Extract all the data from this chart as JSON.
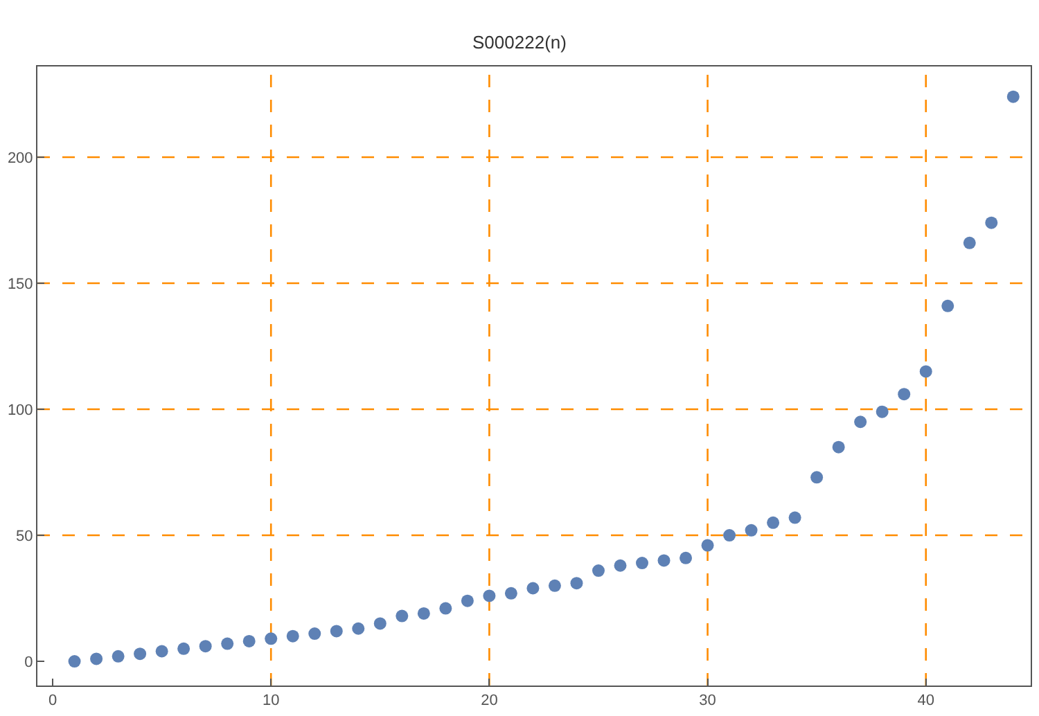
{
  "chart_data": {
    "type": "scatter",
    "title": "S000222(n)",
    "x": [
      1,
      2,
      3,
      4,
      5,
      6,
      7,
      8,
      9,
      10,
      11,
      12,
      13,
      14,
      15,
      16,
      17,
      18,
      19,
      20,
      21,
      22,
      23,
      24,
      25,
      26,
      27,
      28,
      29,
      30,
      31,
      32,
      33,
      34,
      35,
      36,
      37,
      38,
      39,
      40,
      41,
      42,
      43,
      44
    ],
    "series": [
      {
        "color": "#5e81b5",
        "values": [
          0,
          1,
          2,
          3,
          4,
          5,
          6,
          7,
          8,
          9,
          10,
          11,
          12,
          13,
          15,
          18,
          19,
          21,
          24,
          26,
          27,
          29,
          30,
          31,
          36,
          38,
          39,
          40,
          41,
          46,
          50,
          52,
          55,
          57,
          73,
          85,
          95,
          99,
          106,
          115,
          141,
          166,
          174,
          224
        ]
      }
    ],
    "xlim": [
      -0.7,
      44.8
    ],
    "ylim": [
      -9.6,
      236
    ],
    "xticks": [
      0,
      10,
      20,
      30,
      40
    ],
    "yticks": [
      0,
      50,
      100,
      150,
      200
    ],
    "marker": "circle",
    "legend": false,
    "ref_lines": [
      {
        "axis": "x",
        "value": 10,
        "color": "#ff8c00",
        "line_style": "dashed"
      },
      {
        "axis": "x",
        "value": 20,
        "color": "#ff8c00",
        "line_style": "dashed"
      },
      {
        "axis": "x",
        "value": 30,
        "color": "#ff8c00",
        "line_style": "dashed"
      },
      {
        "axis": "x",
        "value": 40,
        "color": "#ff8c00",
        "line_style": "dashed"
      },
      {
        "axis": "y",
        "value": 50,
        "color": "#ff8c00",
        "line_style": "dashed"
      },
      {
        "axis": "y",
        "value": 100,
        "color": "#ff8c00",
        "line_style": "dashed"
      },
      {
        "axis": "y",
        "value": 150,
        "color": "#ff8c00",
        "line_style": "dashed"
      },
      {
        "axis": "y",
        "value": 200,
        "color": "#ff8c00",
        "line_style": "dashed"
      }
    ]
  }
}
